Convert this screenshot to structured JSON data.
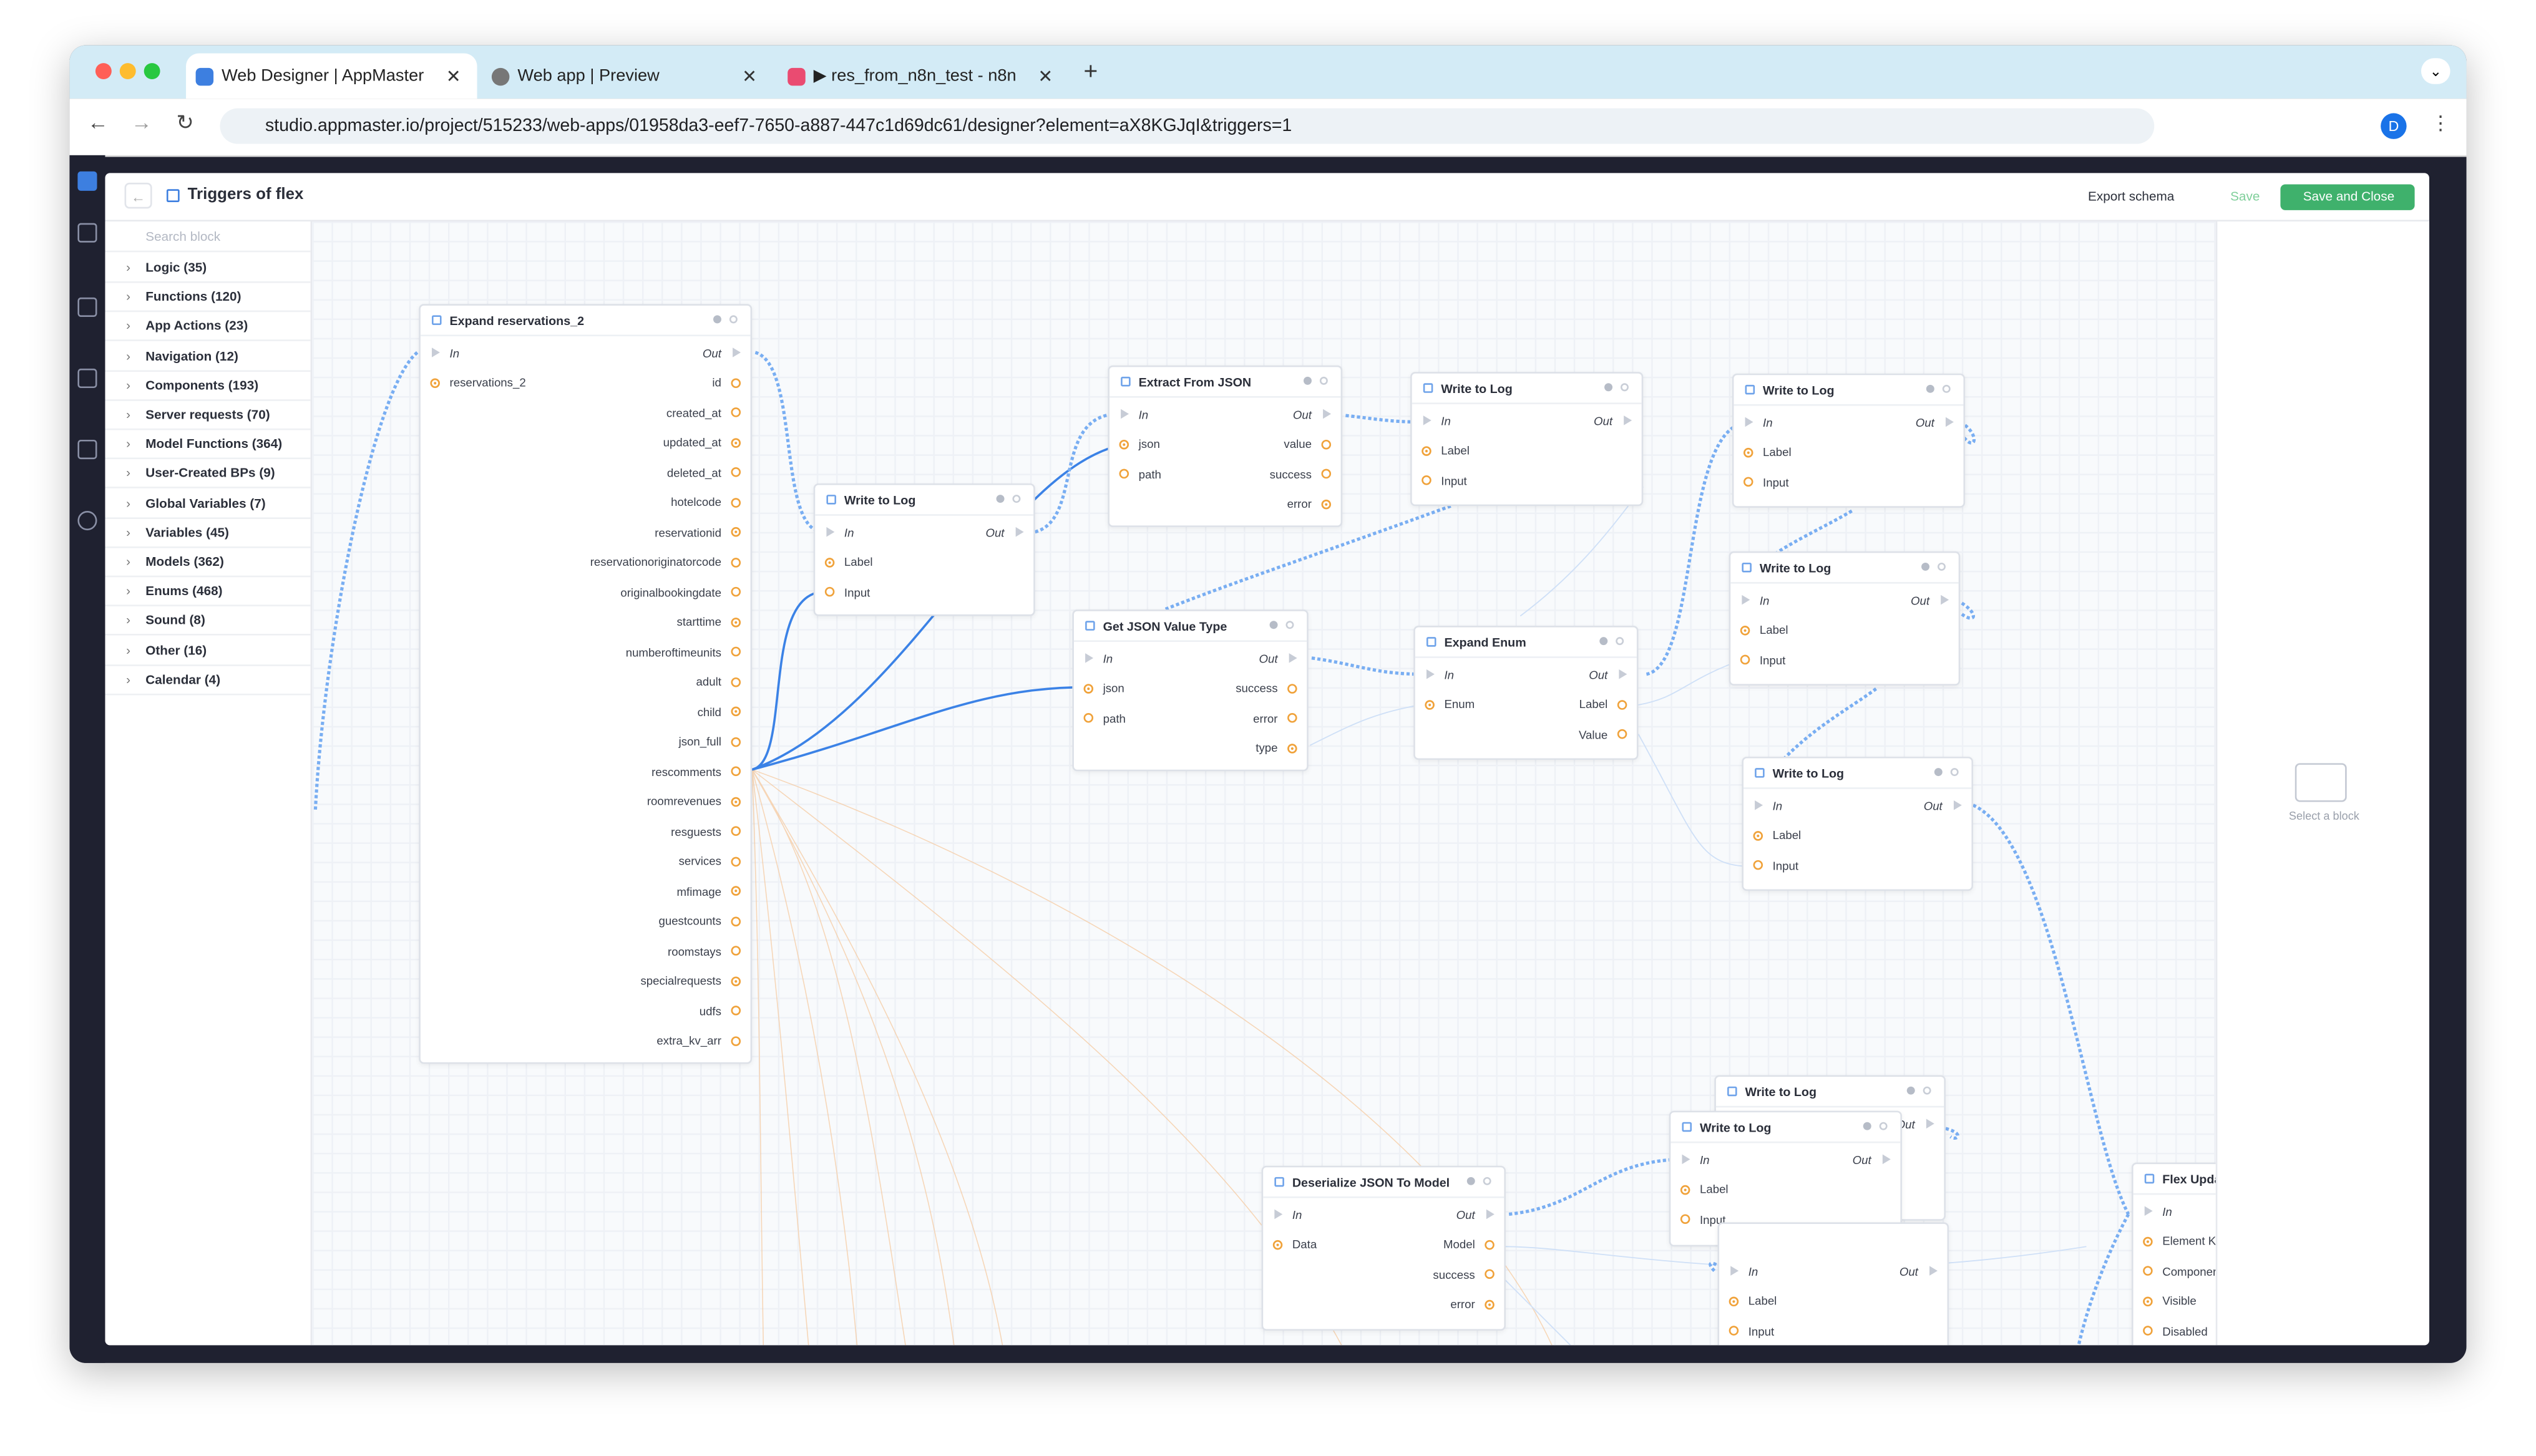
{
  "browser": {
    "tabs": [
      "Web Designer | AppMaster",
      "Web app | Preview",
      "▶ res_from_n8n_test - n8n"
    ],
    "url": "studio.appmaster.io/project/515233/web-apps/01958da3-eef7-7650-a887-447c1d69dc61/designer?element=aX8KGJqI&triggers=1",
    "avatar": "D"
  },
  "header": {
    "title": "Triggers of flex",
    "buttons": [
      "Export schema",
      "Save",
      "Save and Close"
    ]
  },
  "sidebar": {
    "search": "Search block",
    "categories": [
      "Logic (35)",
      "Functions (120)",
      "App Actions (23)",
      "Navigation (12)",
      "Components (193)",
      "Server requests (70)",
      "Model Functions (364)",
      "User-Created BPs (9)",
      "Global Variables (7)",
      "Variables (45)",
      "Models (362)",
      "Enums (468)",
      "Sound (8)",
      "Other (16)",
      "Calendar (4)"
    ]
  },
  "nodes": [
    {
      "title": "Expand reservations_2",
      "inputs": [
        "In",
        "reservations_2"
      ],
      "outputs": [
        "Out",
        "id",
        "created_at",
        "updated_at",
        "deleted_at",
        "hotelcode",
        "reservationid",
        "reservationoriginatorcode",
        "originalbookingdate",
        "starttime",
        "numberoftimeunits",
        "adult",
        "child",
        "json_full",
        "rescomments",
        "roomrevenues",
        "resguests",
        "services",
        "mfimage",
        "guestcounts",
        "roomstays",
        "specialrequests",
        "udfs",
        "extra_kv_arr"
      ]
    },
    {
      "title": "Write to Log",
      "inputs": [
        "In",
        "Label",
        "Input"
      ],
      "outputs": [
        "Out"
      ]
    },
    {
      "title": "Extract From JSON",
      "inputs": [
        "In",
        "json",
        "path"
      ],
      "outputs": [
        "Out",
        "value",
        "success",
        "error"
      ]
    },
    {
      "title": "Write to Log",
      "inputs": [
        "In",
        "Label",
        "Input"
      ],
      "outputs": [
        "Out"
      ]
    },
    {
      "title": "Write to Log",
      "inputs": [
        "In",
        "Label",
        "Input"
      ],
      "outputs": [
        "Out"
      ]
    },
    {
      "title": "Get JSON Value Type",
      "inputs": [
        "In",
        "json",
        "path"
      ],
      "outputs": [
        "Out",
        "success",
        "error",
        "type"
      ]
    },
    {
      "title": "Expand Enum",
      "inputs": [
        "In",
        "Enum"
      ],
      "outputs": [
        "Out",
        "Label",
        "Value"
      ]
    },
    {
      "title": "Write to Log",
      "inputs": [
        "In",
        "Label",
        "Input"
      ],
      "outputs": [
        "Out"
      ]
    },
    {
      "title": "Write to Log",
      "inputs": [
        "In",
        "Label",
        "Input"
      ],
      "outputs": [
        "Out"
      ]
    },
    {
      "title": "Write to Log",
      "inputs": [],
      "outputs": [
        "Out"
      ]
    },
    {
      "title": "Write to Log",
      "inputs": [
        "In",
        "Label",
        "Input"
      ],
      "outputs": [
        "Out"
      ]
    },
    {
      "inputs": [
        "In",
        "Label",
        "Input"
      ],
      "outputs": [
        "Out"
      ]
    },
    {
      "title": "Deserialize JSON To Model",
      "inputs": [
        "In",
        "Data"
      ],
      "outputs": [
        "Out",
        "Model",
        "success",
        "error"
      ]
    },
    {
      "title": "Flex Upda",
      "inputs": [
        "In",
        "Element Ke",
        "Componer",
        "Visible",
        "Disabled"
      ],
      "outputs": []
    }
  ],
  "panel": {
    "hint": "Select a block"
  }
}
